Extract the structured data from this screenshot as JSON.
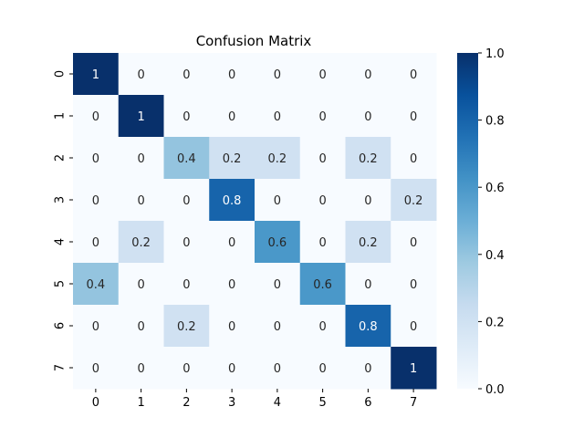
{
  "chart_data": {
    "type": "heatmap",
    "title": "Confusion Matrix",
    "xlabel": "",
    "ylabel": "",
    "x_categories": [
      "0",
      "1",
      "2",
      "3",
      "4",
      "5",
      "6",
      "7"
    ],
    "y_categories": [
      "0",
      "1",
      "2",
      "3",
      "4",
      "5",
      "6",
      "7"
    ],
    "values": [
      [
        1,
        0,
        0,
        0,
        0,
        0,
        0,
        0
      ],
      [
        0,
        1,
        0,
        0,
        0,
        0,
        0,
        0
      ],
      [
        0,
        0,
        0.4,
        0.2,
        0.2,
        0,
        0.2,
        0
      ],
      [
        0,
        0,
        0,
        0.8,
        0,
        0,
        0,
        0.2
      ],
      [
        0,
        0.2,
        0,
        0,
        0.6,
        0,
        0.2,
        0
      ],
      [
        0.4,
        0,
        0,
        0,
        0,
        0.6,
        0,
        0
      ],
      [
        0,
        0,
        0.2,
        0,
        0,
        0,
        0.8,
        0
      ],
      [
        0,
        0,
        0,
        0,
        0,
        0,
        0,
        1
      ]
    ],
    "annotations": true,
    "colormap": "Blues",
    "color_stops": [
      "#f7fbff",
      "#deebf7",
      "#c6dbef",
      "#9ecae1",
      "#6baed6",
      "#4292c6",
      "#2171b5",
      "#08519c",
      "#08306b"
    ],
    "vmin": 0,
    "vmax": 1,
    "colorbar_ticks": [
      "0.0",
      "0.2",
      "0.4",
      "0.6",
      "0.8",
      "1.0"
    ],
    "colorbar_tick_values": [
      0,
      0.2,
      0.4,
      0.6,
      0.8,
      1.0
    ],
    "grid": false,
    "legend": "colorbar-right"
  }
}
